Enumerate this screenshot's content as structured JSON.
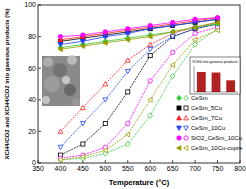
{
  "chart_data": [
    {
      "type": "line",
      "x_label": "Temperature (°C)",
      "y_label": "XCH4/CO2 and XCH4/CO2 into gaseous products (%)",
      "x": [
        400,
        450,
        500,
        550,
        600,
        650,
        700,
        750
      ],
      "xlim": [
        350,
        800
      ],
      "xticks": [
        350,
        400,
        450,
        500,
        550,
        600,
        650,
        700,
        750,
        800
      ],
      "ylim": [
        0,
        100
      ],
      "yticks": [
        0,
        20,
        40,
        60,
        80,
        100
      ],
      "legend": "lower right",
      "series": [
        {
          "name": "CeSm",
          "color": "#33cc33",
          "marker": "diamond",
          "values": [
            73,
            75,
            77,
            79,
            81,
            83,
            86,
            88
          ],
          "gaseous_values": [
            2,
            3,
            6,
            12,
            30,
            55,
            75,
            85
          ]
        },
        {
          "name": "CeSm_5Cu",
          "color": "#000000",
          "marker": "square",
          "values": [
            77,
            79,
            81,
            83,
            85,
            87,
            89,
            91
          ],
          "gaseous_values": [
            5,
            12,
            25,
            45,
            68,
            80,
            85,
            88
          ]
        },
        {
          "name": "CeSm_7Cu",
          "color": "#ff2020",
          "marker": "triangle",
          "values": [
            78,
            80,
            82,
            84,
            86,
            88,
            90,
            92
          ],
          "gaseous_values": [
            20,
            35,
            50,
            65,
            75,
            82,
            86,
            89
          ]
        },
        {
          "name": "CeSm_10Cu",
          "color": "#2040ff",
          "marker": "triangle-down",
          "values": [
            75,
            77,
            80,
            82,
            85,
            87,
            89,
            91
          ],
          "gaseous_values": [
            10,
            25,
            40,
            58,
            72,
            80,
            85,
            88
          ]
        },
        {
          "name": "SiO2_CeSm_10Cu",
          "color": "#ff00ff",
          "marker": "circle",
          "values": [
            80,
            81,
            83,
            85,
            87,
            89,
            91,
            92
          ],
          "gaseous_values": [
            3,
            5,
            10,
            25,
            52,
            70,
            82,
            86
          ]
        },
        {
          "name": "CeSm_10Cu-copre",
          "color": "#999900",
          "marker": "triangle-left",
          "values": [
            72,
            74,
            76,
            78,
            80,
            83,
            86,
            89
          ],
          "gaseous_values": [
            2,
            4,
            8,
            18,
            40,
            62,
            78,
            84
          ]
        }
      ]
    },
    {
      "type": "bar",
      "legend_label": "XCH4 into gaseous products",
      "categories": [
        null,
        null,
        null
      ],
      "values": [
        77,
        75,
        45
      ],
      "color": "#b22222",
      "ylim": [
        0,
        100
      ],
      "tick_labels": false
    }
  ]
}
